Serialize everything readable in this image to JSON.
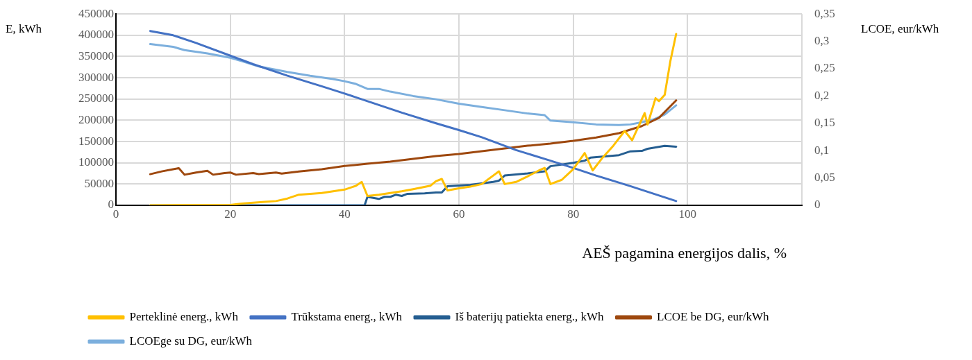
{
  "chart_data": {
    "type": "line",
    "xlabel": "AEŠ pagamina energijos dalis, %",
    "ylabel": "E, kWh",
    "y2label": "LCOE, eur/kWh",
    "xlim": [
      0,
      120
    ],
    "xticks": [
      0,
      20,
      40,
      60,
      80,
      100,
      {
        "value": 120,
        "label": null
      }
    ],
    "ylim": [
      0,
      450000
    ],
    "yticks": [
      0,
      50000,
      100000,
      150000,
      200000,
      250000,
      300000,
      350000,
      400000,
      450000
    ],
    "y2lim": [
      0,
      0.35
    ],
    "y2ticks": [
      {
        "value": 0,
        "label": "0"
      },
      {
        "value": 0.05,
        "label": "0,05"
      },
      {
        "value": 0.1,
        "label": "0,1"
      },
      {
        "value": 0.15,
        "label": "0,15"
      },
      {
        "value": 0.2,
        "label": "0,2"
      },
      {
        "value": 0.25,
        "label": "0,25"
      },
      {
        "value": 0.3,
        "label": "0,3"
      },
      {
        "value": 0.35,
        "label": "0,35"
      }
    ],
    "grid": true,
    "legend": "bottom",
    "marker": "none",
    "line_style": "solid",
    "series": [
      {
        "name": "Perteklinė energ., kWh",
        "color": "#ffc000",
        "x": [
          6,
          20,
          22,
          26,
          28,
          30,
          32,
          36,
          40,
          42,
          43,
          44,
          46,
          48,
          50,
          52,
          55,
          56,
          57,
          58,
          60,
          62,
          64,
          66,
          67,
          68,
          70,
          72,
          74,
          75,
          76,
          78,
          80,
          82,
          83.4,
          85,
          87,
          89,
          90.3,
          92.5,
          93,
          94.4,
          95,
          96,
          97,
          98
        ],
        "values": [
          0,
          1000,
          4000,
          8000,
          10000,
          16000,
          25000,
          29000,
          37000,
          46000,
          55000,
          22000,
          25000,
          29000,
          33000,
          38000,
          46000,
          57000,
          62000,
          35000,
          40000,
          44000,
          50000,
          70000,
          80000,
          50000,
          55000,
          68000,
          82000,
          88000,
          50000,
          60000,
          85000,
          123000,
          82000,
          110000,
          140000,
          175000,
          153000,
          217000,
          190000,
          252000,
          245000,
          260000,
          340000,
          403000
        ]
      },
      {
        "name": "Trūkstama energ., kWh",
        "color": "#4472c4",
        "x": [
          6,
          10,
          14,
          20,
          24,
          30,
          36,
          40,
          44,
          50,
          56,
          60,
          64,
          70,
          76,
          80,
          84,
          90,
          98
        ],
        "values": [
          410000,
          400000,
          382000,
          352000,
          332000,
          305000,
          280000,
          263000,
          245000,
          218000,
          193000,
          177000,
          160000,
          130000,
          105000,
          88000,
          70000,
          45000,
          10000
        ]
      },
      {
        "name": "Iš baterijų patiekta energ., kWh",
        "color": "#255e91",
        "x": [
          6,
          43.5,
          44,
          46,
          47,
          48,
          49,
          50,
          51,
          54,
          56,
          57,
          58,
          62,
          66,
          67,
          68,
          72,
          75,
          76,
          80,
          82,
          83,
          88,
          90,
          92,
          93,
          96,
          98
        ],
        "values": [
          0,
          0,
          20000,
          15000,
          20000,
          20000,
          25000,
          22000,
          27000,
          28000,
          30000,
          30000,
          45000,
          48000,
          55000,
          58000,
          70000,
          75000,
          80000,
          92000,
          100000,
          105000,
          112000,
          118000,
          127000,
          128000,
          133000,
          140000,
          138000
        ]
      },
      {
        "name": "LCOE be DG, eur/kWh",
        "color": "#9e480e",
        "axis": "y2",
        "x": [
          6,
          8,
          10,
          11,
          12,
          14,
          16,
          17,
          19,
          20,
          21,
          24,
          25,
          28,
          29,
          32,
          36,
          40,
          44,
          48,
          52,
          56,
          60,
          64,
          68,
          72,
          76,
          80,
          84,
          88,
          92,
          95,
          98
        ],
        "values": [
          0.057,
          0.062,
          0.066,
          0.068,
          0.056,
          0.06,
          0.063,
          0.056,
          0.059,
          0.06,
          0.056,
          0.059,
          0.057,
          0.06,
          0.058,
          0.062,
          0.066,
          0.072,
          0.076,
          0.08,
          0.085,
          0.09,
          0.094,
          0.099,
          0.104,
          0.109,
          0.113,
          0.118,
          0.124,
          0.132,
          0.145,
          0.16,
          0.192
        ]
      },
      {
        "name": "LCOEge su DG, eur/kWh",
        "color": "#7cafdd",
        "axis": "y2",
        "x": [
          6,
          10,
          12,
          16,
          20,
          22,
          25,
          30,
          34,
          38,
          40,
          42,
          44,
          46,
          48,
          52,
          56,
          60,
          64,
          68,
          72,
          75,
          76,
          80,
          84,
          88,
          90,
          92,
          94,
          96,
          98
        ],
        "values": [
          0.295,
          0.29,
          0.284,
          0.278,
          0.27,
          0.264,
          0.254,
          0.244,
          0.237,
          0.231,
          0.227,
          0.222,
          0.213,
          0.213,
          0.208,
          0.2,
          0.194,
          0.186,
          0.18,
          0.174,
          0.168,
          0.165,
          0.155,
          0.152,
          0.148,
          0.147,
          0.148,
          0.152,
          0.157,
          0.166,
          0.183
        ]
      }
    ]
  }
}
